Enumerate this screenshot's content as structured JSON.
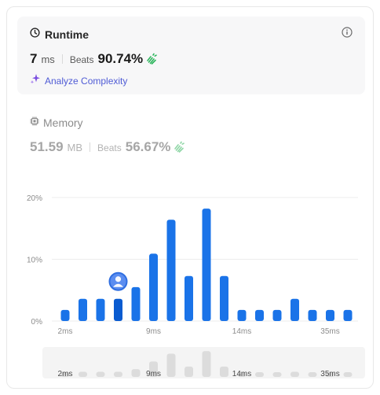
{
  "runtime": {
    "title": "Runtime",
    "value": "7",
    "unit": "ms",
    "beats_label": "Beats",
    "beats_value": "90.74%",
    "analyze_label": "Analyze Complexity"
  },
  "memory": {
    "title": "Memory",
    "value": "51.59",
    "unit": "MB",
    "beats_label": "Beats",
    "beats_value": "56.67%"
  },
  "icons": {
    "runtime": "clock-icon",
    "info": "info-icon",
    "beats": "clapping-hands-icon",
    "analyze": "sparkle-icon",
    "memory": "chip-icon",
    "user": "user-avatar-icon"
  },
  "colors": {
    "bar": "#1a73e8",
    "bar_active": "#0a5bd0",
    "brush_bar": "#dcdcdc",
    "analyze": "#4f5bd5",
    "hands": "#2db55d"
  },
  "chart_data": {
    "type": "bar",
    "ylabel": "",
    "y_ticks": [
      "0%",
      "10%",
      "20%"
    ],
    "y_tick_values": [
      0,
      10,
      20
    ],
    "ylim": [
      0,
      20
    ],
    "x_tick_labels": [
      {
        "index": 0,
        "label": "2ms"
      },
      {
        "index": 5,
        "label": "9ms"
      },
      {
        "index": 10,
        "label": "14ms"
      },
      {
        "index": 15,
        "label": "35ms"
      }
    ],
    "values": [
      1.8,
      3.6,
      3.6,
      3.6,
      5.5,
      10.9,
      16.4,
      7.3,
      18.2,
      7.3,
      1.8,
      1.8,
      1.8,
      3.6,
      1.8,
      1.8,
      1.8
    ],
    "highlight_index": 3,
    "grid": true,
    "brush_x_tick_labels": [
      {
        "index": 0,
        "label": "2ms"
      },
      {
        "index": 5,
        "label": "9ms"
      },
      {
        "index": 10,
        "label": "14ms"
      },
      {
        "index": 15,
        "label": "35ms"
      }
    ]
  }
}
